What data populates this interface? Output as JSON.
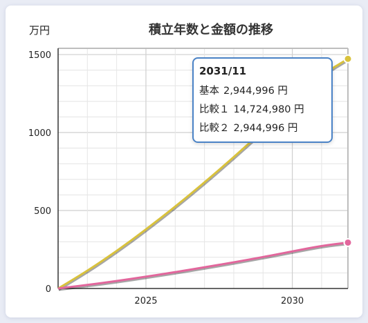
{
  "chart_data": {
    "type": "line",
    "title": "積立年数と金額の推移",
    "unit_label": "万円",
    "xlabel": "",
    "ylabel": "",
    "xlim": [
      2022,
      2031.9
    ],
    "ylim": [
      0,
      1540
    ],
    "xticks": [
      2025,
      2030
    ],
    "yticks": [
      0,
      500,
      1000,
      1500
    ],
    "grid": true,
    "legend": "none",
    "series": [
      {
        "key": "hikaku1",
        "color": "#d9c23c",
        "x": [
          2022,
          2023,
          2024,
          2025,
          2026,
          2027,
          2028,
          2029,
          2030,
          2031,
          2031.9
        ],
        "y": [
          0,
          113,
          240,
          378,
          525,
          680,
          842,
          1012,
          1188,
          1370,
          1472.5
        ]
      },
      {
        "key": "kihon",
        "color": "#e2669c",
        "x": [
          2022,
          2023,
          2024,
          2025,
          2026,
          2027,
          2028,
          2029,
          2030,
          2031,
          2031.9
        ],
        "y": [
          0,
          23,
          48,
          76,
          105,
          136,
          168,
          202,
          238,
          274,
          294.5
        ]
      }
    ],
    "tooltip": {
      "title": "2031/11",
      "rows": [
        {
          "label": "基本",
          "value": "2,944,996 円"
        },
        {
          "label": "比較１",
          "value": "14,724,980 円"
        },
        {
          "label": "比較２",
          "value": "2,944,996 円"
        }
      ]
    }
  }
}
